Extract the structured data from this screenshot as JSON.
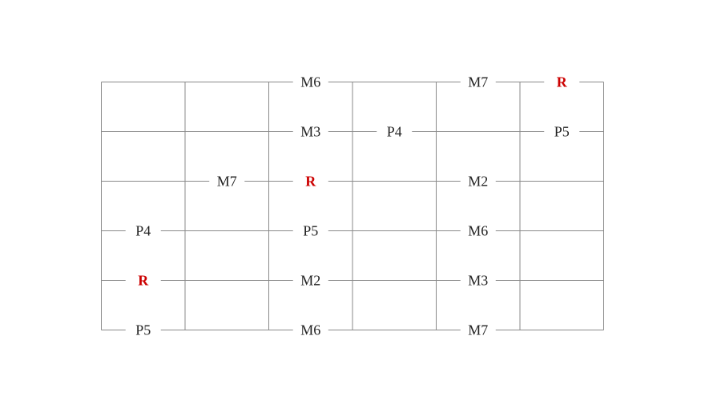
{
  "colors": {
    "line": "#8a8a8a",
    "text": "#222222",
    "root": "#cc0000",
    "background": "#ffffff"
  },
  "grid": {
    "strings": 6,
    "frets": 6
  },
  "notes": [
    {
      "string": 0,
      "fret": 2,
      "label": "M6"
    },
    {
      "string": 0,
      "fret": 4,
      "label": "M7"
    },
    {
      "string": 0,
      "fret": 5,
      "label": "R",
      "root": true
    },
    {
      "string": 1,
      "fret": 2,
      "label": "M3"
    },
    {
      "string": 1,
      "fret": 3,
      "label": "P4"
    },
    {
      "string": 1,
      "fret": 5,
      "label": "P5"
    },
    {
      "string": 2,
      "fret": 1,
      "label": "M7"
    },
    {
      "string": 2,
      "fret": 2,
      "label": "R",
      "root": true
    },
    {
      "string": 2,
      "fret": 4,
      "label": "M2"
    },
    {
      "string": 3,
      "fret": 0,
      "label": "P4"
    },
    {
      "string": 3,
      "fret": 2,
      "label": "P5"
    },
    {
      "string": 3,
      "fret": 4,
      "label": "M6"
    },
    {
      "string": 4,
      "fret": 0,
      "label": "R",
      "root": true
    },
    {
      "string": 4,
      "fret": 2,
      "label": "M2"
    },
    {
      "string": 4,
      "fret": 4,
      "label": "M3"
    },
    {
      "string": 5,
      "fret": 0,
      "label": "P5"
    },
    {
      "string": 5,
      "fret": 2,
      "label": "M6"
    },
    {
      "string": 5,
      "fret": 4,
      "label": "M7"
    }
  ]
}
